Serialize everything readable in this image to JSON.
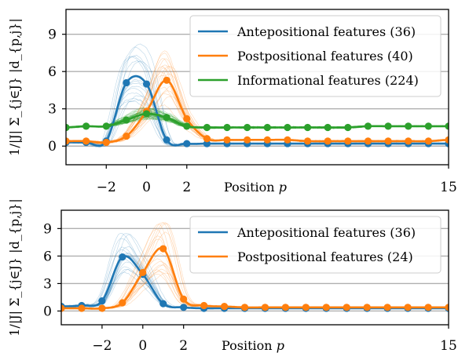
{
  "chart_data": [
    {
      "type": "line",
      "title": "",
      "xlabel": "Position p",
      "ylabel": "1/|J| Σ_{j∈J} |d_{p,j}|",
      "xlim": [
        -4,
        15
      ],
      "ylim": [
        -1.5,
        11
      ],
      "xticks": [
        -2,
        0,
        2,
        15
      ],
      "yticks": [
        0,
        3,
        6,
        9
      ],
      "grid": "horizontal",
      "legend": "top-right",
      "x": [
        -4,
        -3,
        -2,
        -1,
        0,
        1,
        2,
        3,
        4,
        5,
        6,
        7,
        8,
        9,
        10,
        11,
        12,
        13,
        14,
        15
      ],
      "series": [
        {
          "name": "Antepositional features (36)",
          "color": "#1f77b4",
          "values": [
            0.3,
            0.3,
            0.4,
            5.1,
            5.0,
            0.5,
            0.2,
            0.2,
            0.2,
            0.2,
            0.2,
            0.2,
            0.2,
            0.2,
            0.2,
            0.2,
            0.2,
            0.2,
            0.2,
            0.2
          ]
        },
        {
          "name": "Postpositional features (40)",
          "color": "#ff7f0e",
          "values": [
            0.4,
            0.4,
            0.3,
            0.8,
            2.8,
            5.3,
            2.2,
            0.6,
            0.5,
            0.5,
            0.5,
            0.5,
            0.4,
            0.4,
            0.4,
            0.4,
            0.4,
            0.4,
            0.4,
            0.5
          ]
        },
        {
          "name": "Informational features (224)",
          "color": "#2ca02c",
          "values": [
            1.5,
            1.6,
            1.6,
            2.1,
            2.6,
            2.3,
            1.6,
            1.5,
            1.5,
            1.5,
            1.5,
            1.5,
            1.5,
            1.5,
            1.5,
            1.6,
            1.6,
            1.6,
            1.6,
            1.6
          ]
        }
      ]
    },
    {
      "type": "line",
      "title": "",
      "xlabel": "Position p",
      "ylabel": "1/|J| Σ_{j∈J} |d_{p,j}|",
      "xlim": [
        -4,
        15
      ],
      "ylim": [
        -1.5,
        11
      ],
      "xticks": [
        -2,
        0,
        2,
        15
      ],
      "yticks": [
        0,
        3,
        6,
        9
      ],
      "grid": "horizontal",
      "legend": "top-right",
      "x": [
        -4,
        -3,
        -2,
        -1,
        0,
        1,
        2,
        3,
        4,
        5,
        6,
        7,
        8,
        9,
        10,
        11,
        12,
        13,
        14,
        15
      ],
      "series": [
        {
          "name": "Antepositional features (36)",
          "color": "#1f77b4",
          "values": [
            0.5,
            0.6,
            1.1,
            5.9,
            4.0,
            0.8,
            0.4,
            0.3,
            0.3,
            0.3,
            0.3,
            0.3,
            0.3,
            0.3,
            0.3,
            0.3,
            0.3,
            0.3,
            0.3,
            0.3
          ]
        },
        {
          "name": "Postpositional features (24)",
          "color": "#ff7f0e",
          "values": [
            0.3,
            0.3,
            0.3,
            0.9,
            4.2,
            6.8,
            1.3,
            0.6,
            0.5,
            0.4,
            0.4,
            0.4,
            0.4,
            0.4,
            0.4,
            0.4,
            0.4,
            0.4,
            0.4,
            0.4
          ]
        }
      ]
    }
  ]
}
